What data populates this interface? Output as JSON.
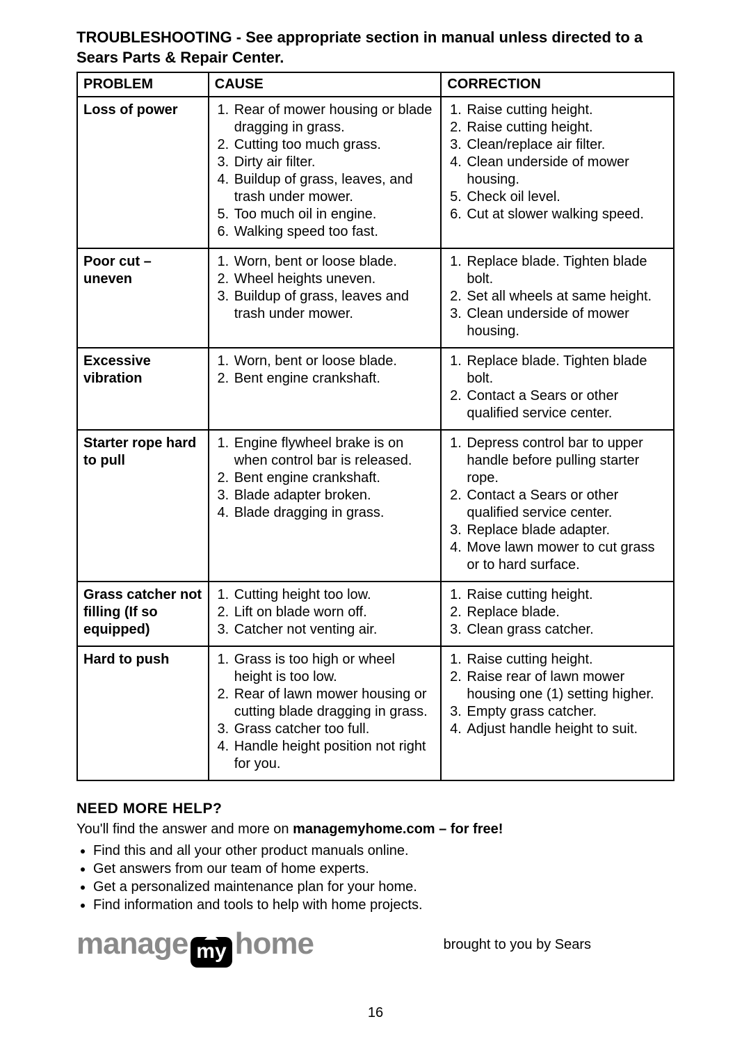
{
  "title": "TROUBLESHOOTING - See appropriate section in manual unless directed to a Sears Parts & Repair Center.",
  "headers": {
    "problem": "PROBLEM",
    "cause": "CAUSE",
    "correction": "CORRECTION"
  },
  "rows": [
    {
      "problem": "Loss of power",
      "causes": [
        "Rear of mower housing or blade dragging in grass.",
        "Cutting too much grass.",
        "Dirty air filter.",
        "Buildup of grass, leaves, and trash under mower.",
        "Too much oil in engine.",
        "Walking speed too fast."
      ],
      "fixes": [
        "Raise cutting height.",
        "Raise cutting height.",
        "Clean/replace air filter.",
        "Clean underside of mower housing.",
        "Check oil level.",
        "Cut at slower walking speed."
      ]
    },
    {
      "problem": "Poor cut – uneven",
      "causes": [
        "Worn, bent or loose blade.",
        "Wheel heights uneven.",
        "Buildup of grass, leaves and trash under mower."
      ],
      "fixes": [
        "Replace blade. Tighten blade bolt.",
        "Set all wheels at same height.",
        "Clean underside of mower housing."
      ]
    },
    {
      "problem": "Excessive vibration",
      "causes": [
        "Worn, bent or loose blade.",
        "Bent engine crankshaft."
      ],
      "fixes": [
        "Replace blade. Tighten blade bolt.",
        "Contact a Sears or other qualified service center."
      ]
    },
    {
      "problem": "Starter rope hard to pull",
      "causes": [
        "Engine flywheel brake is on when control bar is released.",
        "Bent engine crankshaft.",
        "Blade adapter broken.",
        "Blade dragging in grass."
      ],
      "fixes": [
        "Depress control bar to upper handle before pulling starter rope.",
        "Contact a Sears or other qualified service center.",
        "Replace blade adapter.",
        "Move lawn mower to cut grass or to hard surface."
      ]
    },
    {
      "problem": "Grass catcher not filling (If so equipped)",
      "causes": [
        "Cutting height too low.",
        "Lift on blade worn off.",
        "Catcher not venting air."
      ],
      "fixes": [
        "Raise cutting height.",
        "Replace blade.",
        "Clean grass catcher."
      ]
    },
    {
      "problem": "Hard to push",
      "causes": [
        "Grass is too high or wheel height is too low.",
        "Rear of lawn mower housing or cutting blade dragging in grass.",
        "Grass catcher too full.",
        "Handle height position not right for you."
      ],
      "fixes": [
        "Raise cutting height.",
        "Raise rear of lawn mower housing one (1) setting higher.",
        "Empty grass catcher.",
        "Adjust handle height to suit."
      ]
    }
  ],
  "help": {
    "heading": "NEED MORE HELP?",
    "sub_pre": "You'll find the answer and more on ",
    "site": "managemyhome.com – for free!",
    "bullets": [
      "Find this and all your other product manuals online.",
      "Get answers from our team of home experts.",
      "Get a personalized maintenance plan for your home.",
      "Find information and tools to help with home projects."
    ]
  },
  "logo": {
    "w1": "manage",
    "pill": "my",
    "w2": "home"
  },
  "brought": "brought to you by Sears",
  "page_number": "16",
  "colors": {
    "text": "#000000",
    "bg": "#ffffff",
    "logo_grey": "#8a8a8a",
    "pill_bg": "#000000",
    "pill_fg": "#ffffff",
    "border": "#000000"
  }
}
